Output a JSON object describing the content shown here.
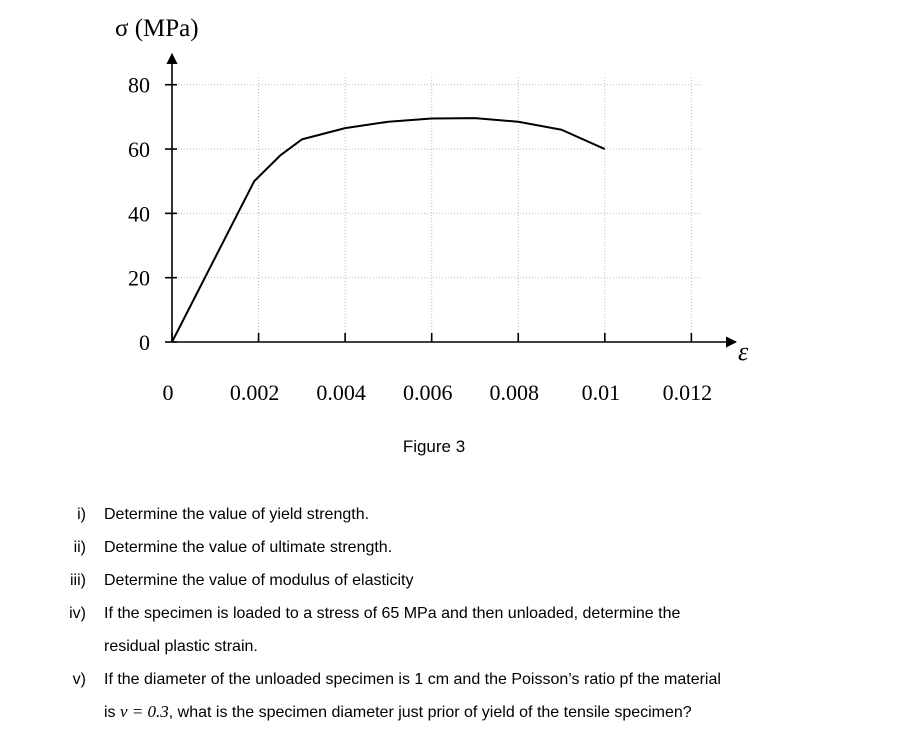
{
  "chart_data": {
    "type": "line",
    "title": "σ (MPa)",
    "x_label": "ε",
    "x": [
      0,
      0.0019,
      0.0025,
      0.003,
      0.004,
      0.005,
      0.006,
      0.007,
      0.008,
      0.009,
      0.01
    ],
    "values": [
      0,
      50,
      58,
      63,
      66.5,
      68.5,
      69.5,
      69.6,
      68.5,
      66,
      60
    ],
    "color": "#000000",
    "xlim": [
      0,
      0.0128
    ],
    "ylim": [
      0,
      88
    ],
    "xticks": [
      0,
      0.002,
      0.004,
      0.006,
      0.008,
      0.01,
      0.012
    ],
    "yticks": [
      0,
      20,
      40,
      60,
      80
    ],
    "grid": true
  },
  "caption": "Figure 3",
  "questions": [
    {
      "number": "i)",
      "lines": [
        "Determine the value of yield strength."
      ]
    },
    {
      "number": "ii)",
      "lines": [
        "Determine the value of ultimate strength."
      ]
    },
    {
      "number": "iii)",
      "lines": [
        "Determine the value of modulus of elasticity"
      ]
    },
    {
      "number": "iv)",
      "lines": [
        "If the specimen is loaded to a stress of 65 MPa and then unloaded, determine the",
        "residual plastic strain."
      ]
    },
    {
      "number": "v)",
      "lines": [
        "If the diameter of the unloaded specimen is 1 cm and the Poisson’s ratio pf the material",
        {
          "before": "is ",
          "math": "v = 0.3",
          "after": ", what is the specimen diameter just prior of yield of the tensile specimen?"
        }
      ]
    }
  ]
}
